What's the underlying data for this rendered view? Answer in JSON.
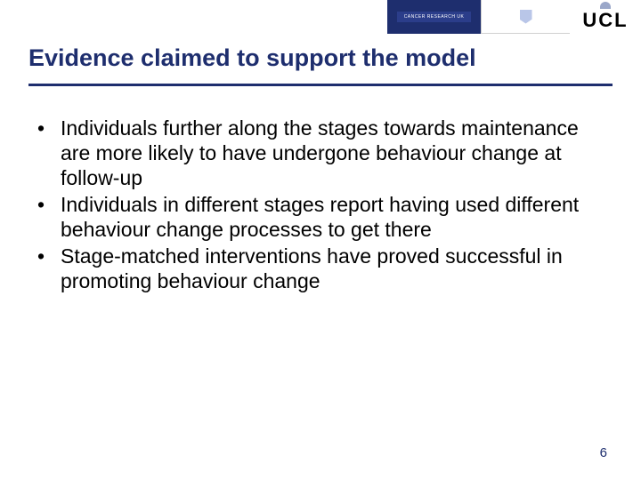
{
  "logos": {
    "cancer": "CANCER RESEARCH UK",
    "crest_top": "",
    "crest_bottom": "",
    "ucl": "UCL"
  },
  "title": "Evidence claimed to support the model",
  "bullets": [
    "Individuals further along the stages towards maintenance are more likely to have undergone behaviour change at follow-up",
    "Individuals in different stages report having used different behaviour change processes to get there",
    "Stage-matched interventions have proved successful in promoting behaviour change"
  ],
  "pageNumber": "6",
  "colors": {
    "accent": "#1e2e6e",
    "text": "#000000",
    "bg": "#ffffff"
  }
}
